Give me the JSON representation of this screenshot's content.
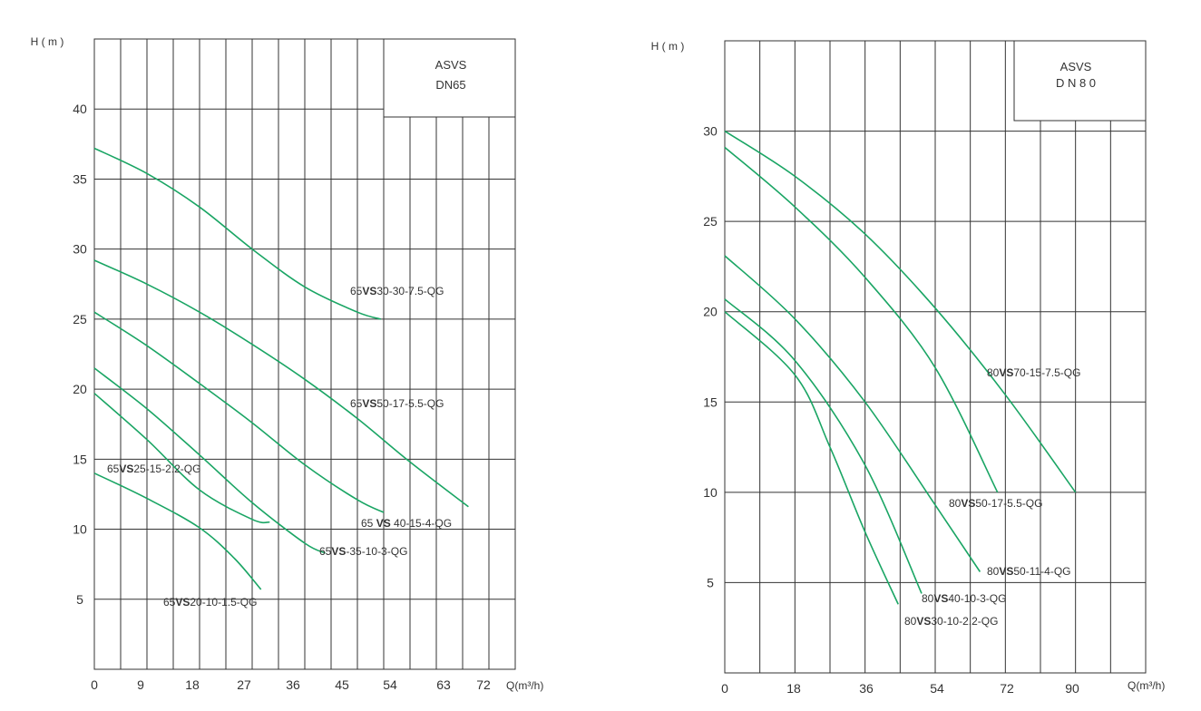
{
  "colors": {
    "curve": "#1aa564",
    "grid": "#333333",
    "text": "#333333",
    "background": "#ffffff"
  },
  "chart_data": [
    {
      "type": "line",
      "title_lines": [
        "ASVS",
        "DN65"
      ],
      "ylabel": "H ( m )",
      "xlabel": "Q(m³/h)",
      "xlim": [
        0,
        72
      ],
      "ylim": [
        0,
        45
      ],
      "x_ticks": [
        "0",
        "9",
        "18",
        "27",
        "36",
        "45",
        "54",
        "63",
        "72"
      ],
      "y_ticks": [
        "5",
        "10",
        "15",
        "20",
        "25",
        "30",
        "35",
        "40"
      ],
      "grid": true,
      "series": [
        {
          "name": "65VS30-30-7.5-QG",
          "name_parts": [
            "65",
            "VS",
            "30-30-7.5-QG"
          ],
          "x": [
            0,
            9,
            18,
            27,
            36,
            45,
            49
          ],
          "y": [
            37.2,
            35.4,
            33.0,
            30.0,
            27.3,
            25.5,
            25.0
          ]
        },
        {
          "name": "65VS50-17-5.5-QG",
          "name_parts": [
            "65",
            "VS",
            "50-17-5.5-QG"
          ],
          "x": [
            0,
            9,
            18,
            27,
            36,
            45,
            54,
            64
          ],
          "y": [
            29.2,
            27.5,
            25.5,
            23.2,
            20.7,
            17.9,
            14.8,
            11.6
          ]
        },
        {
          "name": "65 VS 40-15-4-QG",
          "name_parts": [
            "65 ",
            "VS",
            " 40-15-4-QG"
          ],
          "x": [
            0,
            9,
            18,
            27,
            36,
            45,
            49.5
          ],
          "y": [
            25.5,
            23.1,
            20.4,
            17.6,
            14.6,
            12.1,
            11.2
          ]
        },
        {
          "name": "65VS-35-10-3-QG",
          "name_parts": [
            "65",
            "VS",
            "-35-10-3-QG"
          ],
          "x": [
            0,
            9,
            18,
            27,
            36,
            39.5
          ],
          "y": [
            21.5,
            18.6,
            15.3,
            11.9,
            9.0,
            8.3
          ]
        },
        {
          "name": "65VS25-15-2.2-QG",
          "name_parts": [
            "65",
            "VS",
            "25-15-2.2-QG"
          ],
          "x": [
            0,
            9,
            18,
            27,
            30
          ],
          "y": [
            19.7,
            16.4,
            12.8,
            10.7,
            10.5
          ]
        },
        {
          "name": "65VS20-10-1.5-QG",
          "name_parts": [
            "65",
            "VS",
            "20-10-1.5-QG"
          ],
          "x": [
            0,
            9,
            18,
            24,
            28.5
          ],
          "y": [
            14.0,
            12.2,
            10.1,
            7.9,
            5.7
          ]
        }
      ]
    },
    {
      "type": "line",
      "title_lines": [
        "ASVS",
        "D N 8 0"
      ],
      "ylabel": "H ( m )",
      "xlabel": "Q(m³/h)",
      "xlim": [
        0,
        108
      ],
      "ylim": [
        0,
        35
      ],
      "x_ticks": [
        "0",
        "18",
        "36",
        "54",
        "72",
        "90"
      ],
      "y_ticks": [
        "5",
        "10",
        "15",
        "20",
        "25",
        "30"
      ],
      "grid": true,
      "series": [
        {
          "name": "80VS70-15-7.5-QG",
          "name_parts": [
            "80",
            "VS",
            "70-15-7.5-QG"
          ],
          "x": [
            0,
            18,
            36,
            54,
            72,
            90
          ],
          "y": [
            30.0,
            27.5,
            24.3,
            20.2,
            15.4,
            10.0
          ]
        },
        {
          "name": "80VS50-17-5.5-QG",
          "name_parts": [
            "80",
            "VS",
            "50-17-5.5-QG"
          ],
          "x": [
            0,
            18,
            36,
            54,
            70
          ],
          "y": [
            29.1,
            25.8,
            21.9,
            16.9,
            10.0
          ]
        },
        {
          "name": "80VS50-11-4-QG",
          "name_parts": [
            "80",
            "VS",
            "50-11-4-QG"
          ],
          "x": [
            0,
            18,
            36,
            54,
            65.5
          ],
          "y": [
            23.1,
            19.6,
            15.0,
            9.3,
            5.6
          ]
        },
        {
          "name": "80VS40-10-3-QG",
          "name_parts": [
            "80",
            "VS",
            "40-10-3-QG"
          ],
          "x": [
            0,
            18,
            36,
            50.5
          ],
          "y": [
            20.7,
            17.3,
            11.5,
            4.4
          ]
        },
        {
          "name": "80VS30-10-2.2-QG",
          "name_parts": [
            "80",
            "VS",
            "30-10-2.2-QG"
          ],
          "x": [
            0,
            18,
            27,
            36,
            44.5
          ],
          "y": [
            20.0,
            16.5,
            12.5,
            7.8,
            3.8
          ]
        }
      ]
    }
  ]
}
